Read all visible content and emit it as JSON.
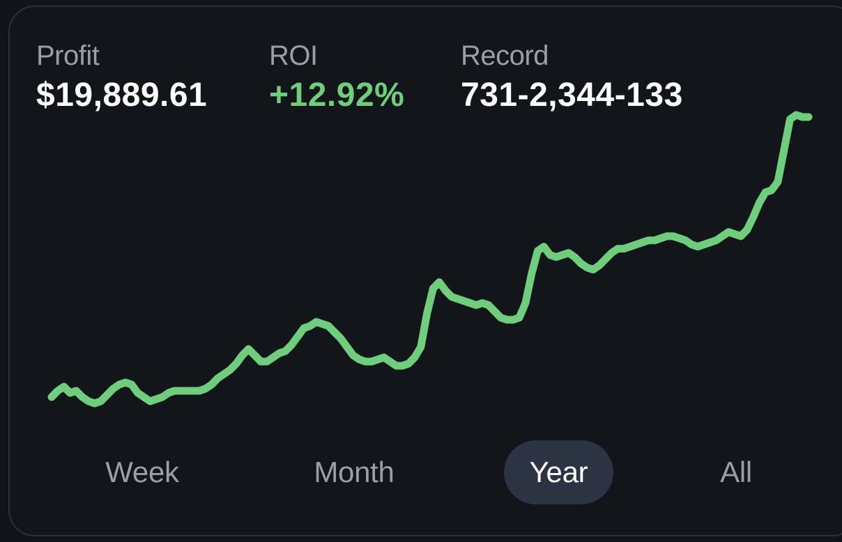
{
  "stats": {
    "profit": {
      "label": "Profit",
      "value": "$19,889.61"
    },
    "roi": {
      "label": "ROI",
      "value": "+12.92%"
    },
    "record": {
      "label": "Record",
      "value": "731-2,344-133"
    }
  },
  "range_tabs": [
    {
      "label": "Week",
      "active": false
    },
    {
      "label": "Month",
      "active": false
    },
    {
      "label": "Year",
      "active": true
    },
    {
      "label": "All",
      "active": false
    }
  ],
  "colors": {
    "line": "#6fce7c",
    "roi_positive": "#6fce7c",
    "active_tab_bg": "#2c3342"
  },
  "chart_data": {
    "type": "line",
    "title": "",
    "xlabel": "",
    "ylabel": "",
    "axes_visible": false,
    "grid": false,
    "x": [
      0,
      1,
      2,
      3,
      4,
      5,
      6,
      7,
      8,
      9,
      10,
      11,
      12,
      13,
      14,
      15,
      16,
      17,
      18,
      19,
      20,
      21,
      22,
      23,
      24,
      25,
      26,
      27,
      28,
      29,
      30,
      31,
      32,
      33,
      34,
      35,
      36,
      37,
      38,
      39,
      40,
      41,
      42,
      43,
      44,
      45,
      46,
      47,
      48,
      49,
      50,
      51,
      52,
      53,
      54,
      55,
      56,
      57,
      58,
      59,
      60,
      61,
      62,
      63,
      64,
      65,
      66,
      67,
      68,
      69,
      70,
      71,
      72,
      73,
      74,
      75,
      76,
      77,
      78,
      79,
      80,
      81,
      82,
      83,
      84,
      85,
      86,
      87,
      88,
      89,
      90,
      91,
      92,
      93,
      94,
      95,
      96,
      97,
      98,
      99,
      100,
      101,
      102,
      103,
      104,
      105,
      106,
      107,
      108,
      109,
      110,
      111,
      112,
      113,
      114,
      115,
      116,
      117,
      118,
      119,
      120,
      121,
      122,
      123
    ],
    "series": [
      {
        "values": [
          0,
          3,
          5,
          2,
          3,
          0,
          -2,
          -3,
          -2,
          1,
          4,
          6,
          7,
          6,
          2,
          0,
          -2,
          -1,
          0,
          2,
          3,
          3,
          3,
          3,
          3,
          4,
          6,
          9,
          11,
          13,
          16,
          20,
          23,
          20,
          17,
          17,
          19,
          21,
          22,
          25,
          29,
          33,
          34,
          36,
          35,
          34,
          31,
          28,
          24,
          20,
          18,
          17,
          17,
          18,
          19,
          17,
          15,
          15,
          16,
          19,
          24,
          40,
          52,
          55,
          51,
          48,
          47,
          46,
          45,
          44,
          45,
          44,
          41,
          38,
          37,
          37,
          38,
          45,
          59,
          70,
          72,
          68,
          67,
          68,
          69,
          67,
          64,
          62,
          61,
          63,
          66,
          69,
          71,
          71,
          72,
          73,
          74,
          75,
          75,
          76,
          77,
          77,
          76,
          75,
          73,
          72,
          73,
          74,
          75,
          77,
          79,
          78,
          77,
          80,
          86,
          93,
          98,
          99,
          103,
          118,
          133,
          135,
          134,
          134
        ]
      }
    ],
    "ylim": [
      -10,
      140
    ]
  }
}
